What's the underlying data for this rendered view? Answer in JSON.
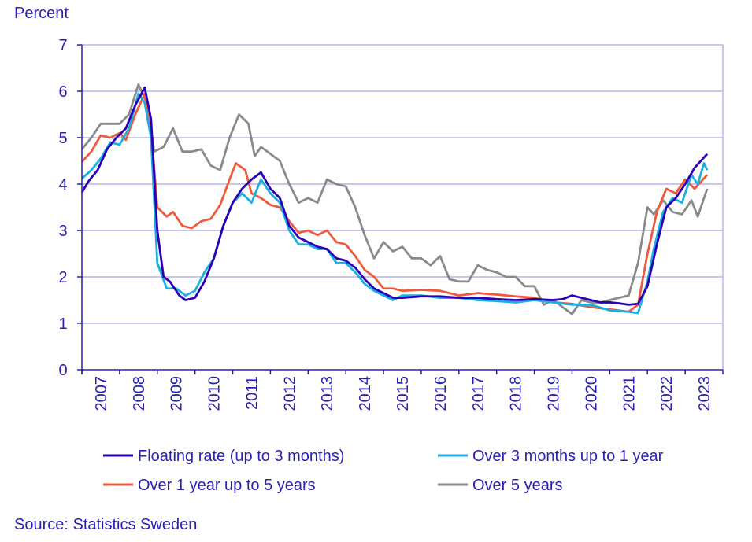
{
  "chart_data": {
    "type": "line",
    "ylabel": "Percent",
    "source": "Source: Statistics Sweden",
    "ylim": [
      0,
      7
    ],
    "yticks": [
      0,
      1,
      2,
      3,
      4,
      5,
      6,
      7
    ],
    "xlim": [
      "2007-01",
      "2024-01"
    ],
    "xticks": [
      "2007",
      "2008",
      "2009",
      "2010",
      "2011",
      "2012",
      "2013",
      "2014",
      "2015",
      "2016",
      "2017",
      "2018",
      "2019",
      "2020",
      "2021",
      "2022",
      "2023"
    ],
    "grid": true,
    "legend": "bottom",
    "series": [
      {
        "name": "Floating rate (up to 3 months)",
        "color": "#2a00b8",
        "points": [
          [
            "2007-01",
            3.82
          ],
          [
            "2007-03",
            4.05
          ],
          [
            "2007-06",
            4.3
          ],
          [
            "2007-09",
            4.75
          ],
          [
            "2007-12",
            5.0
          ],
          [
            "2008-03",
            5.2
          ],
          [
            "2008-06",
            5.7
          ],
          [
            "2008-09",
            6.08
          ],
          [
            "2008-11",
            5.4
          ],
          [
            "2009-01",
            3.0
          ],
          [
            "2009-03",
            2.0
          ],
          [
            "2009-05",
            1.9
          ],
          [
            "2009-08",
            1.6
          ],
          [
            "2009-10",
            1.5
          ],
          [
            "2010-01",
            1.55
          ],
          [
            "2010-04",
            1.9
          ],
          [
            "2010-07",
            2.4
          ],
          [
            "2010-10",
            3.1
          ],
          [
            "2011-01",
            3.6
          ],
          [
            "2011-04",
            3.9
          ],
          [
            "2011-07",
            4.1
          ],
          [
            "2011-10",
            4.25
          ],
          [
            "2012-01",
            3.9
          ],
          [
            "2012-04",
            3.7
          ],
          [
            "2012-07",
            3.1
          ],
          [
            "2012-10",
            2.85
          ],
          [
            "2013-01",
            2.75
          ],
          [
            "2013-04",
            2.65
          ],
          [
            "2013-07",
            2.6
          ],
          [
            "2013-10",
            2.4
          ],
          [
            "2014-01",
            2.35
          ],
          [
            "2014-04",
            2.2
          ],
          [
            "2014-07",
            1.95
          ],
          [
            "2014-10",
            1.75
          ],
          [
            "2015-01",
            1.65
          ],
          [
            "2015-04",
            1.55
          ],
          [
            "2015-07",
            1.55
          ],
          [
            "2016-01",
            1.58
          ],
          [
            "2016-07",
            1.58
          ],
          [
            "2017-01",
            1.55
          ],
          [
            "2017-07",
            1.55
          ],
          [
            "2018-01",
            1.52
          ],
          [
            "2018-07",
            1.5
          ],
          [
            "2019-01",
            1.52
          ],
          [
            "2019-07",
            1.5
          ],
          [
            "2019-10",
            1.52
          ],
          [
            "2020-01",
            1.6
          ],
          [
            "2020-04",
            1.55
          ],
          [
            "2020-07",
            1.5
          ],
          [
            "2020-10",
            1.45
          ],
          [
            "2021-01",
            1.45
          ],
          [
            "2021-04",
            1.43
          ],
          [
            "2021-07",
            1.4
          ],
          [
            "2021-10",
            1.42
          ],
          [
            "2022-01",
            1.8
          ],
          [
            "2022-04",
            2.7
          ],
          [
            "2022-07",
            3.5
          ],
          [
            "2022-10",
            3.7
          ],
          [
            "2023-01",
            4.0
          ],
          [
            "2023-04",
            4.35
          ],
          [
            "2023-08",
            4.65
          ]
        ]
      },
      {
        "name": "Over 3 months up to 1 year",
        "color": "#1ab0e0",
        "points": [
          [
            "2007-01",
            4.12
          ],
          [
            "2007-04",
            4.3
          ],
          [
            "2007-07",
            4.55
          ],
          [
            "2007-10",
            4.9
          ],
          [
            "2008-01",
            4.85
          ],
          [
            "2008-04",
            5.2
          ],
          [
            "2008-07",
            5.95
          ],
          [
            "2008-09",
            5.75
          ],
          [
            "2008-11",
            5.0
          ],
          [
            "2009-01",
            2.3
          ],
          [
            "2009-04",
            1.75
          ],
          [
            "2009-07",
            1.75
          ],
          [
            "2009-10",
            1.6
          ],
          [
            "2010-01",
            1.7
          ],
          [
            "2010-04",
            2.1
          ],
          [
            "2010-07",
            2.4
          ],
          [
            "2010-10",
            3.1
          ],
          [
            "2011-01",
            3.6
          ],
          [
            "2011-04",
            3.8
          ],
          [
            "2011-07",
            3.6
          ],
          [
            "2011-10",
            4.1
          ],
          [
            "2012-01",
            3.8
          ],
          [
            "2012-04",
            3.6
          ],
          [
            "2012-07",
            3.0
          ],
          [
            "2012-10",
            2.7
          ],
          [
            "2013-01",
            2.7
          ],
          [
            "2013-04",
            2.6
          ],
          [
            "2013-07",
            2.6
          ],
          [
            "2013-10",
            2.3
          ],
          [
            "2014-01",
            2.3
          ],
          [
            "2014-04",
            2.1
          ],
          [
            "2014-07",
            1.85
          ],
          [
            "2014-10",
            1.7
          ],
          [
            "2015-01",
            1.6
          ],
          [
            "2015-04",
            1.5
          ],
          [
            "2015-07",
            1.6
          ],
          [
            "2016-01",
            1.6
          ],
          [
            "2016-07",
            1.55
          ],
          [
            "2017-01",
            1.55
          ],
          [
            "2017-07",
            1.5
          ],
          [
            "2018-01",
            1.48
          ],
          [
            "2018-07",
            1.45
          ],
          [
            "2019-01",
            1.5
          ],
          [
            "2019-07",
            1.45
          ],
          [
            "2020-01",
            1.4
          ],
          [
            "2020-07",
            1.4
          ],
          [
            "2021-01",
            1.28
          ],
          [
            "2021-07",
            1.25
          ],
          [
            "2021-10",
            1.22
          ],
          [
            "2022-01",
            1.9
          ],
          [
            "2022-03",
            2.6
          ],
          [
            "2022-06",
            3.4
          ],
          [
            "2022-09",
            3.7
          ],
          [
            "2022-12",
            3.6
          ],
          [
            "2023-03",
            4.2
          ],
          [
            "2023-05",
            4.0
          ],
          [
            "2023-07",
            4.45
          ],
          [
            "2023-08",
            4.3
          ]
        ]
      },
      {
        "name": "Over 1 year up to 5 years",
        "color": "#f05a3c",
        "points": [
          [
            "2007-01",
            4.48
          ],
          [
            "2007-04",
            4.7
          ],
          [
            "2007-07",
            5.05
          ],
          [
            "2007-10",
            5.0
          ],
          [
            "2008-01",
            5.1
          ],
          [
            "2008-03",
            4.95
          ],
          [
            "2008-06",
            5.5
          ],
          [
            "2008-09",
            5.95
          ],
          [
            "2008-11",
            5.2
          ],
          [
            "2009-01",
            3.5
          ],
          [
            "2009-04",
            3.3
          ],
          [
            "2009-06",
            3.4
          ],
          [
            "2009-09",
            3.1
          ],
          [
            "2009-12",
            3.05
          ],
          [
            "2010-03",
            3.2
          ],
          [
            "2010-06",
            3.25
          ],
          [
            "2010-09",
            3.55
          ],
          [
            "2010-12",
            4.1
          ],
          [
            "2011-02",
            4.45
          ],
          [
            "2011-05",
            4.3
          ],
          [
            "2011-07",
            3.8
          ],
          [
            "2011-10",
            3.7
          ],
          [
            "2012-01",
            3.55
          ],
          [
            "2012-04",
            3.5
          ],
          [
            "2012-07",
            3.2
          ],
          [
            "2012-10",
            2.95
          ],
          [
            "2013-01",
            3.0
          ],
          [
            "2013-04",
            2.9
          ],
          [
            "2013-07",
            3.0
          ],
          [
            "2013-10",
            2.75
          ],
          [
            "2014-01",
            2.7
          ],
          [
            "2014-04",
            2.45
          ],
          [
            "2014-07",
            2.15
          ],
          [
            "2014-10",
            2.0
          ],
          [
            "2015-01",
            1.75
          ],
          [
            "2015-04",
            1.75
          ],
          [
            "2015-07",
            1.7
          ],
          [
            "2016-01",
            1.72
          ],
          [
            "2016-07",
            1.7
          ],
          [
            "2017-01",
            1.6
          ],
          [
            "2017-07",
            1.65
          ],
          [
            "2018-01",
            1.62
          ],
          [
            "2018-07",
            1.58
          ],
          [
            "2019-01",
            1.55
          ],
          [
            "2019-07",
            1.45
          ],
          [
            "2020-01",
            1.42
          ],
          [
            "2020-07",
            1.35
          ],
          [
            "2021-01",
            1.3
          ],
          [
            "2021-07",
            1.25
          ],
          [
            "2021-10",
            1.4
          ],
          [
            "2022-01",
            2.5
          ],
          [
            "2022-04",
            3.4
          ],
          [
            "2022-07",
            3.9
          ],
          [
            "2022-10",
            3.8
          ],
          [
            "2023-01",
            4.1
          ],
          [
            "2023-04",
            3.9
          ],
          [
            "2023-08",
            4.2
          ]
        ]
      },
      {
        "name": "Over 5 years",
        "color": "#8a8a8a",
        "points": [
          [
            "2007-01",
            4.75
          ],
          [
            "2007-04",
            5.0
          ],
          [
            "2007-07",
            5.3
          ],
          [
            "2007-10",
            5.3
          ],
          [
            "2008-01",
            5.3
          ],
          [
            "2008-04",
            5.5
          ],
          [
            "2008-07",
            6.15
          ],
          [
            "2008-10",
            5.7
          ],
          [
            "2008-12",
            4.7
          ],
          [
            "2009-03",
            4.8
          ],
          [
            "2009-06",
            5.2
          ],
          [
            "2009-09",
            4.7
          ],
          [
            "2009-12",
            4.7
          ],
          [
            "2010-03",
            4.75
          ],
          [
            "2010-06",
            4.4
          ],
          [
            "2010-09",
            4.3
          ],
          [
            "2010-12",
            5.0
          ],
          [
            "2011-03",
            5.5
          ],
          [
            "2011-06",
            5.3
          ],
          [
            "2011-08",
            4.6
          ],
          [
            "2011-10",
            4.8
          ],
          [
            "2012-01",
            4.65
          ],
          [
            "2012-04",
            4.5
          ],
          [
            "2012-07",
            4.0
          ],
          [
            "2012-10",
            3.6
          ],
          [
            "2013-01",
            3.7
          ],
          [
            "2013-04",
            3.6
          ],
          [
            "2013-07",
            4.1
          ],
          [
            "2013-10",
            4.0
          ],
          [
            "2014-01",
            3.95
          ],
          [
            "2014-04",
            3.5
          ],
          [
            "2014-07",
            2.9
          ],
          [
            "2014-10",
            2.4
          ],
          [
            "2015-01",
            2.75
          ],
          [
            "2015-04",
            2.55
          ],
          [
            "2015-07",
            2.65
          ],
          [
            "2015-10",
            2.4
          ],
          [
            "2016-01",
            2.4
          ],
          [
            "2016-04",
            2.25
          ],
          [
            "2016-07",
            2.45
          ],
          [
            "2016-10",
            1.95
          ],
          [
            "2017-01",
            1.9
          ],
          [
            "2017-04",
            1.9
          ],
          [
            "2017-07",
            2.25
          ],
          [
            "2017-10",
            2.15
          ],
          [
            "2018-01",
            2.1
          ],
          [
            "2018-04",
            2.0
          ],
          [
            "2018-07",
            2.0
          ],
          [
            "2018-10",
            1.8
          ],
          [
            "2019-01",
            1.8
          ],
          [
            "2019-04",
            1.4
          ],
          [
            "2019-07",
            1.5
          ],
          [
            "2019-10",
            1.35
          ],
          [
            "2020-01",
            1.2
          ],
          [
            "2020-04",
            1.5
          ],
          [
            "2020-07",
            1.45
          ],
          [
            "2020-10",
            1.45
          ],
          [
            "2021-01",
            1.5
          ],
          [
            "2021-04",
            1.55
          ],
          [
            "2021-07",
            1.6
          ],
          [
            "2021-10",
            2.3
          ],
          [
            "2022-01",
            3.5
          ],
          [
            "2022-03",
            3.35
          ],
          [
            "2022-06",
            3.65
          ],
          [
            "2022-09",
            3.4
          ],
          [
            "2022-12",
            3.35
          ],
          [
            "2023-03",
            3.65
          ],
          [
            "2023-05",
            3.3
          ],
          [
            "2023-08",
            3.9
          ]
        ]
      }
    ]
  }
}
